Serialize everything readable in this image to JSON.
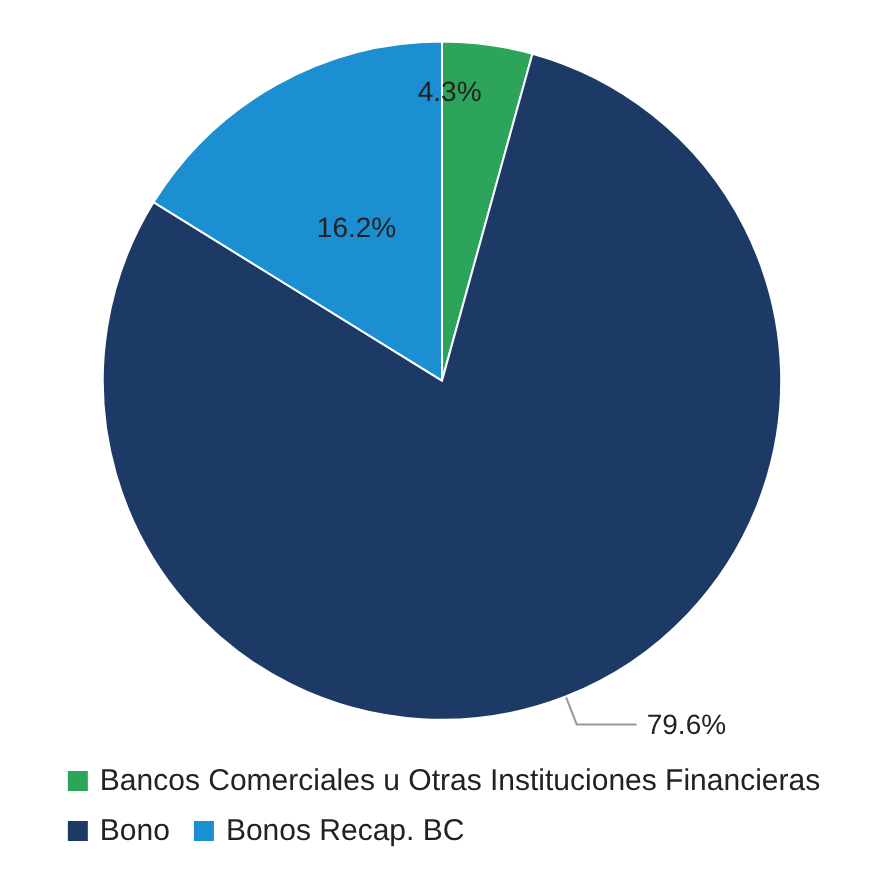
{
  "chart_data": {
    "type": "pie",
    "categories": [
      "Bancos Comerciales u Otras Instituciones Financieras",
      "Bono",
      "Bonos Recap. BC"
    ],
    "values": [
      4.3,
      79.6,
      16.2
    ],
    "colors": [
      "#2ca55a",
      "#1d3a66",
      "#1b8fd2"
    ],
    "value_labels": [
      "4.3%",
      "79.6%",
      "16.2%"
    ],
    "legend": "bottom"
  }
}
